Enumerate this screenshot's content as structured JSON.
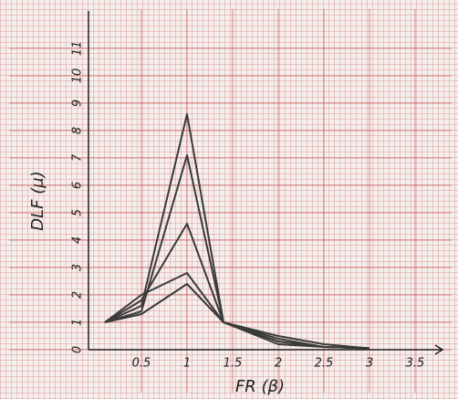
{
  "chart_data": {
    "type": "line",
    "xlabel": "FR (β)",
    "ylabel": "DLF (μ)",
    "x": [
      0.1,
      0.5,
      1,
      1.4,
      2,
      2.5,
      3
    ],
    "series": [
      {
        "color": "#3a3a3a",
        "values": [
          1,
          1.6,
          8.6,
          1,
          0.3,
          0.1,
          0.05
        ]
      },
      {
        "color": "#3a3a3a",
        "values": [
          1,
          1.4,
          7.1,
          1,
          0.4,
          0.1,
          0.05
        ]
      },
      {
        "color": "#3a3a3a",
        "values": [
          1,
          1.8,
          4.6,
          1,
          0.5,
          0.2,
          0.05
        ]
      },
      {
        "color": "#3a3a3a",
        "values": [
          1,
          2.0,
          2.8,
          1,
          0.3,
          0.1,
          0.05
        ]
      },
      {
        "color": "#3a3a3a",
        "values": [
          1,
          1.3,
          2.4,
          1,
          0.2,
          0.1,
          0.05
        ]
      }
    ],
    "xlim": [
      0,
      3.8
    ],
    "ylim": [
      0,
      11.5
    ],
    "xticks": [
      0.5,
      1,
      1.5,
      2,
      2.5,
      3,
      3.5
    ],
    "yticks": [
      0,
      1,
      2,
      3,
      4,
      5,
      6,
      7,
      8,
      9,
      10,
      11
    ],
    "grid": true
  }
}
